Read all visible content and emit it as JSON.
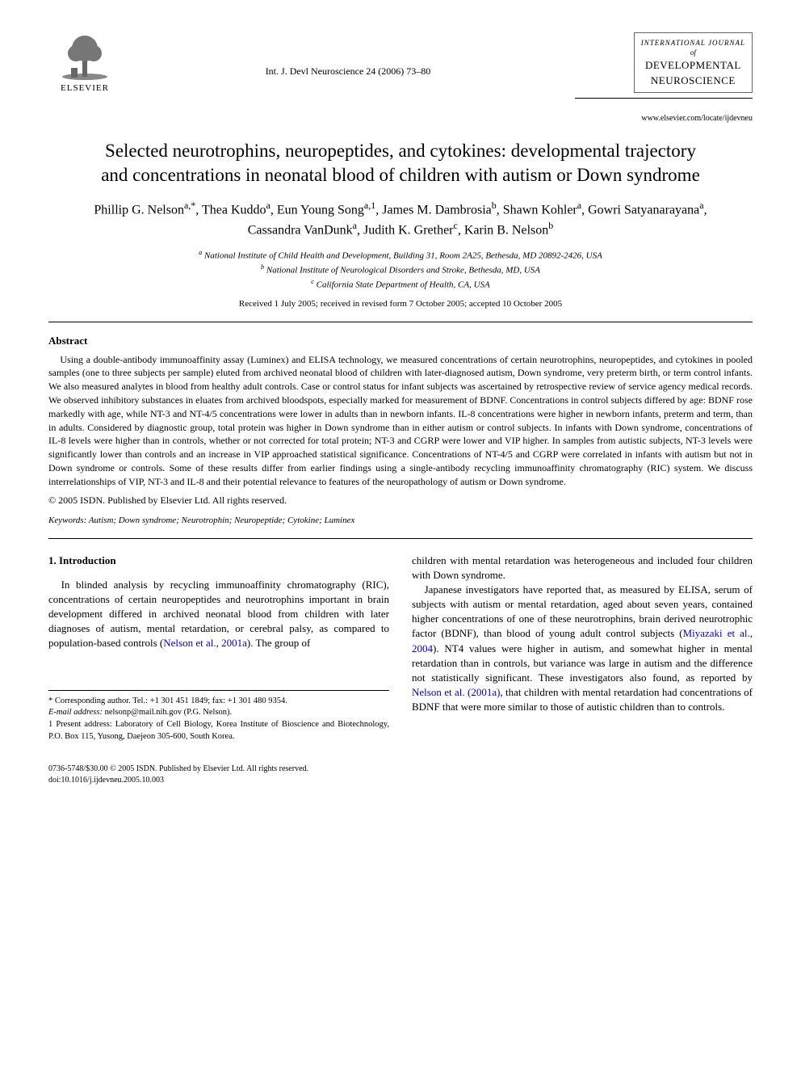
{
  "publisher": {
    "name": "ELSEVIER",
    "tree_fill": "#555555"
  },
  "citation": "Int. J. Devl Neuroscience 24 (2006) 73–80",
  "journal": {
    "overline": "INTERNATIONAL JOURNAL",
    "of": "of",
    "name_line1": "DEVELOPMENTAL",
    "name_line2": "NEUROSCIENCE",
    "url": "www.elsevier.com/locate/ijdevneu"
  },
  "title": "Selected neurotrophins, neuropeptides, and cytokines: developmental trajectory and concentrations in neonatal blood of children with autism or Down syndrome",
  "authors_html": "Phillip G. Nelson<sup>a,*</sup>, Thea Kuddo<sup>a</sup>, Eun Young Song<sup>a,1</sup>, James M. Dambrosia<sup>b</sup>, Shawn Kohler<sup>a</sup>, Gowri Satyanarayana<sup>a</sup>, Cassandra VanDunk<sup>a</sup>, Judith K. Grether<sup>c</sup>, Karin B. Nelson<sup>b</sup>",
  "affiliations": [
    "a National Institute of Child Health and Development, Building 31, Room 2A25, Bethesda, MD 20892-2426, USA",
    "b National Institute of Neurological Disorders and Stroke, Bethesda, MD, USA",
    "c California State Department of Health, CA, USA"
  ],
  "dates": "Received 1 July 2005; received in revised form 7 October 2005; accepted 10 October 2005",
  "abstract_head": "Abstract",
  "abstract": "Using a double-antibody immunoaffinity assay (Luminex) and ELISA technology, we measured concentrations of certain neurotrophins, neuropeptides, and cytokines in pooled samples (one to three subjects per sample) eluted from archived neonatal blood of children with later-diagnosed autism, Down syndrome, very preterm birth, or term control infants. We also measured analytes in blood from healthy adult controls. Case or control status for infant subjects was ascertained by retrospective review of service agency medical records. We observed inhibitory substances in eluates from archived bloodspots, especially marked for measurement of BDNF. Concentrations in control subjects differed by age: BDNF rose markedly with age, while NT-3 and NT-4/5 concentrations were lower in adults than in newborn infants. IL-8 concentrations were higher in newborn infants, preterm and term, than in adults. Considered by diagnostic group, total protein was higher in Down syndrome than in either autism or control subjects. In infants with Down syndrome, concentrations of IL-8 levels were higher than in controls, whether or not corrected for total protein; NT-3 and CGRP were lower and VIP higher. In samples from autistic subjects, NT-3 levels were significantly lower than controls and an increase in VIP approached statistical significance. Concentrations of NT-4/5 and CGRP were correlated in infants with autism but not in Down syndrome or controls. Some of these results differ from earlier findings using a single-antibody recycling immunoaffinity chromatography (RIC) system. We discuss interrelationships of VIP, NT-3 and IL-8 and their potential relevance to features of the neuropathology of autism or Down syndrome.",
  "copyright_line": "© 2005 ISDN. Published by Elsevier Ltd. All rights reserved.",
  "keywords_label": "Keywords:",
  "keywords": "Autism; Down syndrome; Neurotrophin; Neuropeptide; Cytokine; Luminex",
  "intro_head": "1. Introduction",
  "intro_left_p1_a": "In blinded analysis by recycling immunoaffinity chromatography (RIC), concentrations of certain neuropeptides and neurotrophins important in brain development differed in archived neonatal blood from children with later diagnoses of autism, mental retardation, or cerebral palsy, as compared to population-based controls (",
  "intro_left_p1_link": "Nelson et al., 2001a",
  "intro_left_p1_b": "). The group of",
  "intro_right_p1": "children with mental retardation was heterogeneous and included four children with Down syndrome.",
  "intro_right_p2_a": "Japanese investigators have reported that, as measured by ELISA, serum of subjects with autism or mental retardation, aged about seven years, contained higher concentrations of one of these neurotrophins, brain derived neurotrophic factor (BDNF), than blood of young adult control subjects (",
  "intro_right_p2_link1": "Miyazaki et al., 2004",
  "intro_right_p2_b": "). NT4 values were higher in autism, and somewhat higher in mental retardation than in controls, but variance was large in autism and the difference not statistically significant. These investigators also found, as reported by ",
  "intro_right_p2_link2": "Nelson et al. (2001a)",
  "intro_right_p2_c": ", that children with mental retardation had concentrations of BDNF that were more similar to those of autistic children than to controls.",
  "footnotes": {
    "corr": "* Corresponding author. Tel.: +1 301 451 1849; fax: +1 301 480 9354.",
    "email_label": "E-mail address:",
    "email": "nelsonp@mail.nih.gov (P.G. Nelson).",
    "pres": "1 Present address: Laboratory of Cell Biology, Korea Institute of Bioscience and Biotechnology, P.O. Box 115, Yusong, Daejeon 305-600, South Korea."
  },
  "footer": {
    "issn": "0736-5748/$30.00 © 2005 ISDN. Published by Elsevier Ltd. All rights reserved.",
    "doi": "doi:10.1016/j.ijdevneu.2005.10.003"
  }
}
